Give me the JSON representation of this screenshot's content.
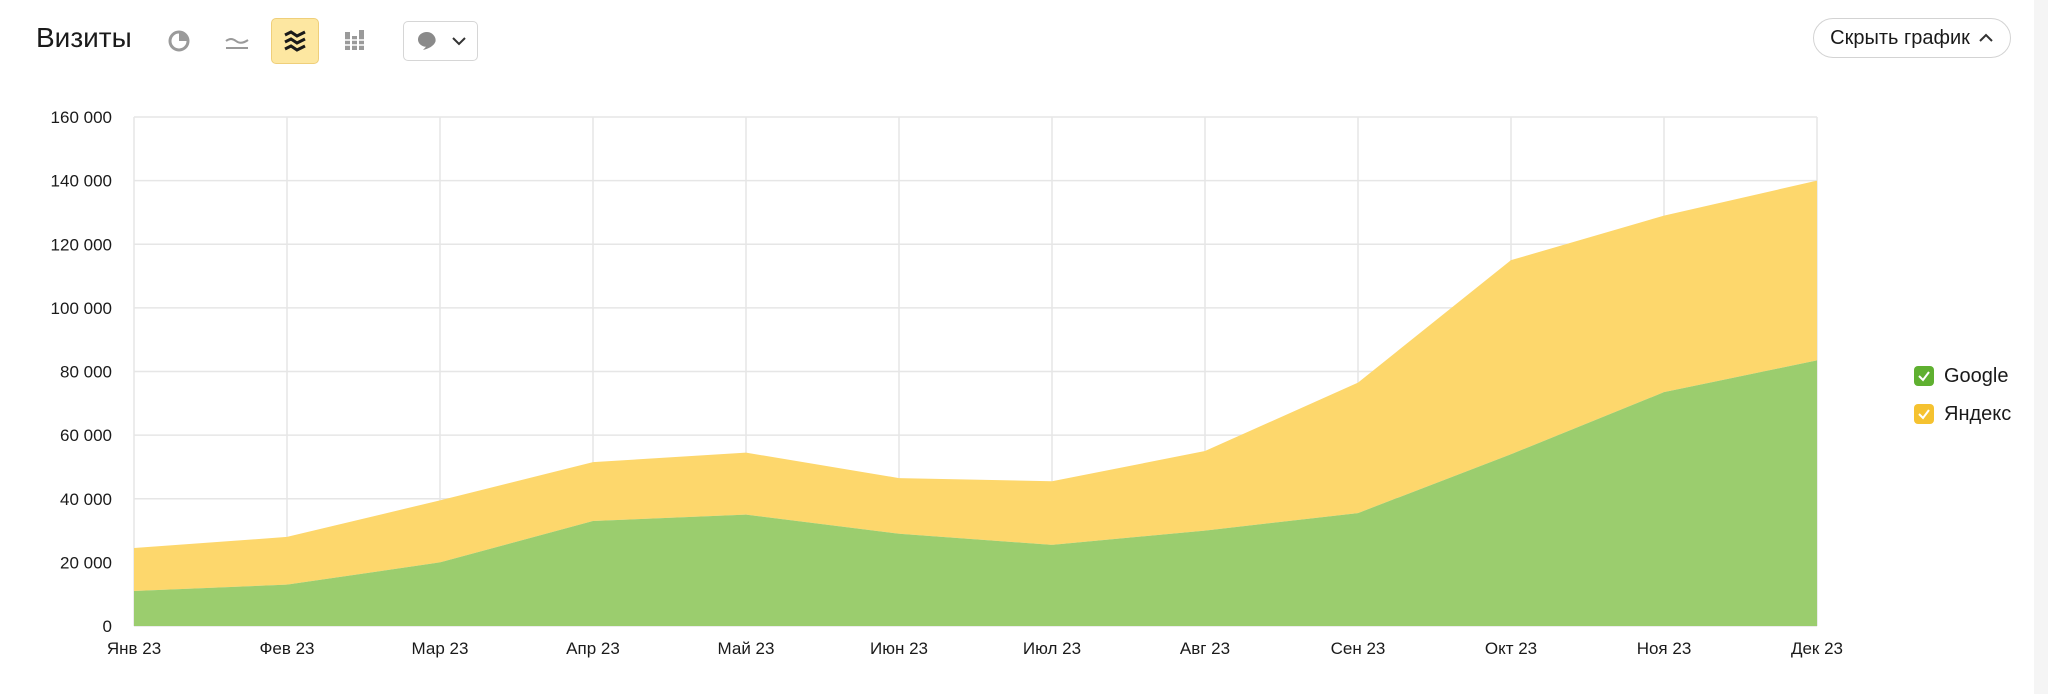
{
  "header": {
    "title": "Визиты",
    "hide_button_label": "Скрыть график"
  },
  "toolbar": {
    "tools": [
      {
        "icon": "pie-chart-icon",
        "active": false
      },
      {
        "icon": "line-chart-icon",
        "active": false
      },
      {
        "icon": "stacked-area-icon",
        "active": true
      },
      {
        "icon": "stacked-bar-icon",
        "active": false
      }
    ],
    "annotations_icon": "comment-icon"
  },
  "colors": {
    "google": "#9bcd6e",
    "yandex": "#fdd76c",
    "google_check": "#5fb030",
    "yandex_check": "#f5c230",
    "active_tool": "#fde7a1"
  },
  "chart_data": {
    "type": "area",
    "stacked": true,
    "categories": [
      "Янв 23",
      "Фев 23",
      "Мар 23",
      "Апр 23",
      "Май 23",
      "Июн 23",
      "Июл 23",
      "Авг 23",
      "Сен 23",
      "Окт 23",
      "Ноя 23",
      "Дек 23"
    ],
    "series": [
      {
        "name": "Google",
        "values": [
          11000,
          13000,
          20000,
          33000,
          35000,
          29000,
          25500,
          30000,
          35500,
          54000,
          73500,
          83500
        ]
      },
      {
        "name": "Яндекс",
        "values": [
          13500,
          15000,
          19500,
          18500,
          19500,
          17500,
          20000,
          25000,
          41000,
          61000,
          55500,
          56500
        ]
      }
    ],
    "ylim": [
      0,
      160000
    ],
    "yticks": [
      0,
      20000,
      40000,
      60000,
      80000,
      100000,
      120000,
      140000,
      160000
    ],
    "ytick_labels": [
      "0",
      "20 000",
      "40 000",
      "60 000",
      "80 000",
      "100 000",
      "120 000",
      "140 000",
      "160 000"
    ],
    "grid": true,
    "legend_position": "right"
  }
}
